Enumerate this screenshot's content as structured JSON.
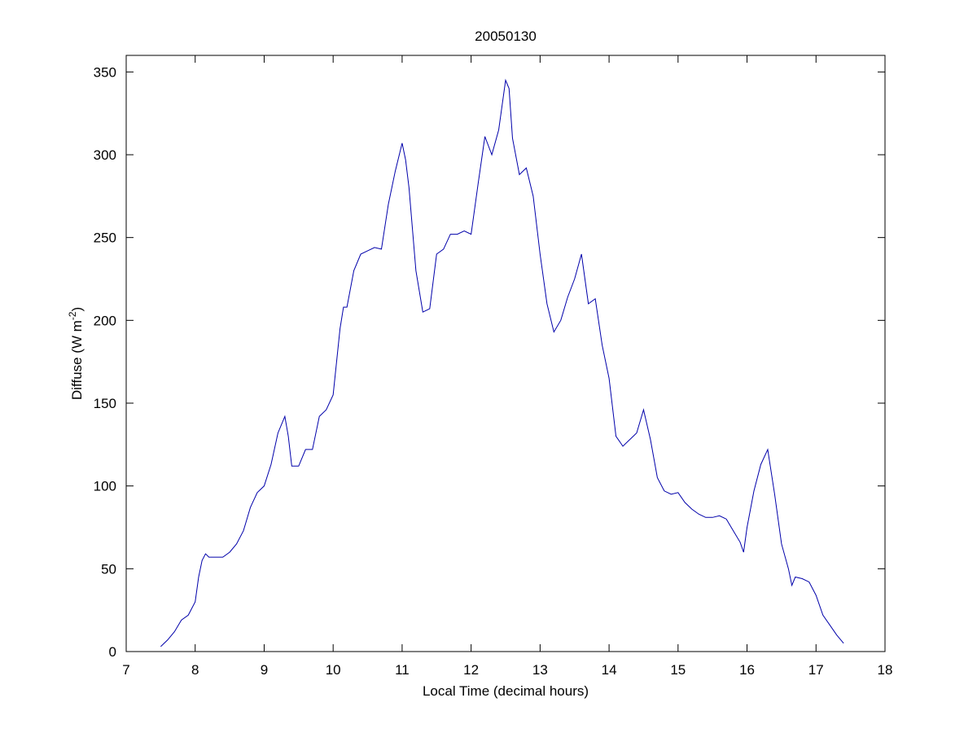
{
  "chart_data": {
    "type": "line",
    "title": "20050130",
    "xlabel": "Local Time (decimal hours)",
    "ylabel": "Diffuse (W m",
    "ylabel_sup": "-2",
    "ylabel_close": ")",
    "xlim": [
      7,
      18
    ],
    "ylim": [
      0,
      360
    ],
    "xticks": [
      7,
      8,
      9,
      10,
      11,
      12,
      13,
      14,
      15,
      16,
      17,
      18
    ],
    "yticks": [
      0,
      50,
      100,
      150,
      200,
      250,
      300,
      350
    ],
    "grid": false,
    "line_color": "#0000aa",
    "series": [
      {
        "x": [
          7.5,
          7.6,
          7.7,
          7.8,
          7.9,
          8.0,
          8.05,
          8.1,
          8.15,
          8.2,
          8.3,
          8.4,
          8.5,
          8.6,
          8.7,
          8.8,
          8.9,
          9.0,
          9.1,
          9.2,
          9.3,
          9.35,
          9.4,
          9.5,
          9.6,
          9.7,
          9.8,
          9.9,
          10.0,
          10.1,
          10.15,
          10.2,
          10.3,
          10.4,
          10.5,
          10.6,
          10.7,
          10.8,
          10.9,
          11.0,
          11.05,
          11.1,
          11.2,
          11.3,
          11.4,
          11.5,
          11.6,
          11.7,
          11.8,
          11.9,
          12.0,
          12.1,
          12.2,
          12.3,
          12.4,
          12.5,
          12.55,
          12.6,
          12.7,
          12.8,
          12.9,
          13.0,
          13.1,
          13.2,
          13.3,
          13.4,
          13.5,
          13.6,
          13.7,
          13.8,
          13.9,
          14.0,
          14.1,
          14.2,
          14.3,
          14.4,
          14.5,
          14.6,
          14.7,
          14.8,
          14.9,
          15.0,
          15.1,
          15.2,
          15.3,
          15.4,
          15.5,
          15.6,
          15.7,
          15.8,
          15.9,
          15.95,
          16.0,
          16.1,
          16.2,
          16.3,
          16.4,
          16.5,
          16.6,
          16.65,
          16.7,
          16.8,
          16.9,
          17.0,
          17.1,
          17.2,
          17.3,
          17.4
        ],
        "y": [
          3,
          7,
          12,
          19,
          22,
          30,
          45,
          55,
          59,
          57,
          57,
          57,
          60,
          65,
          73,
          87,
          96,
          100,
          113,
          132,
          142,
          130,
          112,
          112,
          122,
          122,
          142,
          146,
          155,
          195,
          208,
          208,
          230,
          240,
          242,
          244,
          243,
          270,
          290,
          307,
          297,
          280,
          230,
          205,
          207,
          240,
          243,
          252,
          252,
          254,
          252,
          282,
          311,
          300,
          315,
          345,
          340,
          310,
          288,
          292,
          275,
          240,
          210,
          193,
          200,
          214,
          225,
          240,
          210,
          213,
          185,
          165,
          130,
          124,
          128,
          132,
          146,
          128,
          105,
          97,
          95,
          96,
          90,
          86,
          83,
          81,
          81,
          82,
          80,
          73,
          66,
          60,
          75,
          97,
          113,
          122,
          95,
          65,
          50,
          40,
          45,
          44,
          42,
          34,
          22,
          16,
          10,
          5
        ]
      }
    ]
  }
}
